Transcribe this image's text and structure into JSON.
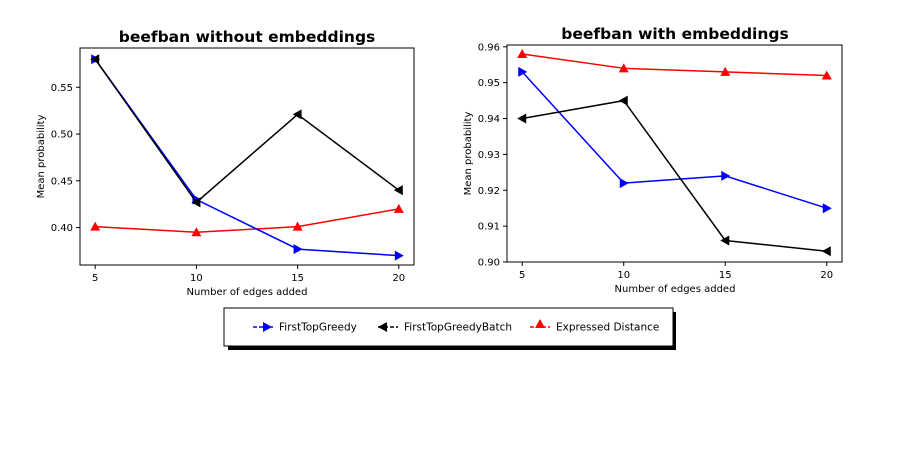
{
  "chart_data": [
    {
      "type": "line",
      "title": "beefban without embeddings",
      "xlabel": "Number of edges added",
      "ylabel": "Mean probability",
      "x": [
        5,
        10,
        15,
        20
      ],
      "xticks": [
        "5",
        "10",
        "15",
        "20"
      ],
      "xlim": [
        4.25,
        20.75
      ],
      "ylim": [
        0.36,
        0.592
      ],
      "yticks": [
        "0.40",
        "0.45",
        "0.50",
        "0.55"
      ],
      "grid": false,
      "series": [
        {
          "name": "FirstTopGreedy",
          "color": "#0000ff",
          "marker": "triangle-right",
          "values": [
            0.58,
            0.43,
            0.377,
            0.37
          ]
        },
        {
          "name": "FirstTopGreedyBatch",
          "color": "#000000",
          "marker": "triangle-left",
          "values": [
            0.58,
            0.427,
            0.521,
            0.44
          ]
        },
        {
          "name": "Expressed Distance",
          "color": "#ff0000",
          "marker": "triangle-up",
          "values": [
            0.401,
            0.395,
            0.401,
            0.42
          ]
        }
      ]
    },
    {
      "type": "line",
      "title": "beefban with embeddings",
      "xlabel": "Number of edges added",
      "ylabel": "Mean probability",
      "x": [
        5,
        10,
        15,
        20
      ],
      "xticks": [
        "5",
        "10",
        "15",
        "20"
      ],
      "xlim": [
        4.25,
        20.75
      ],
      "ylim": [
        0.9,
        0.9605
      ],
      "yticks": [
        "0.90",
        "0.91",
        "0.92",
        "0.93",
        "0.94",
        "0.95",
        "0.96"
      ],
      "grid": false,
      "series": [
        {
          "name": "FirstTopGreedy",
          "color": "#0000ff",
          "marker": "triangle-right",
          "values": [
            0.953,
            0.922,
            0.924,
            0.915
          ]
        },
        {
          "name": "FirstTopGreedyBatch",
          "color": "#000000",
          "marker": "triangle-left",
          "values": [
            0.94,
            0.945,
            0.906,
            0.903
          ]
        },
        {
          "name": "Expressed Distance",
          "color": "#ff0000",
          "marker": "triangle-up",
          "values": [
            0.958,
            0.954,
            0.953,
            0.952
          ]
        }
      ]
    }
  ],
  "legend": {
    "placement": "bottom-center",
    "entries": [
      {
        "label": "FirstTopGreedy",
        "color": "#0000ff",
        "marker": "triangle-right",
        "linestyle": "dashed"
      },
      {
        "label": "FirstTopGreedyBatch",
        "color": "#000000",
        "marker": "triangle-left",
        "linestyle": "dashed"
      },
      {
        "label": "Expressed Distance",
        "color": "#ff0000",
        "marker": "triangle-up",
        "linestyle": "dashed"
      }
    ]
  }
}
